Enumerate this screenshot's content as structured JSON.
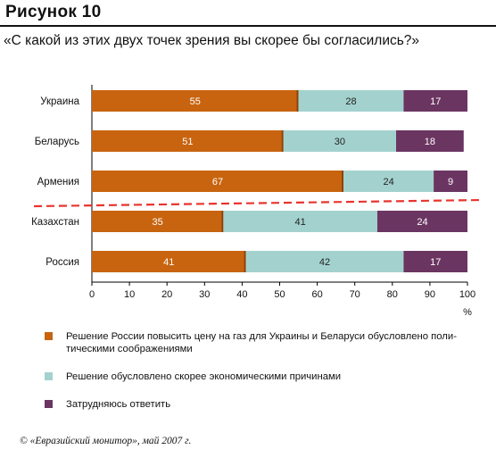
{
  "figure_label": "Рисунок 10",
  "question": "«С какой из этих двух точек зрения вы скорее бы согласились?»",
  "source_note": "© «Евразийский монитор», май 2007 г.",
  "colors": {
    "series_1": "#c8640f",
    "series_2": "#a3d2ce",
    "series_3": "#6b3561",
    "divider": "#e8342d"
  },
  "chart_data": {
    "type": "bar",
    "orientation": "horizontal",
    "stacked": true,
    "categories": [
      "Украина",
      "Беларусь",
      "Армения",
      "Казахстан",
      "Россия"
    ],
    "series": [
      {
        "name": "Решение России повысить цену на газ для Украины и Беларуси обусловлено политическими соображениями",
        "values": [
          55,
          51,
          67,
          35,
          41
        ]
      },
      {
        "name": "Решение обусловлено скорее экономическими причинами",
        "values": [
          28,
          30,
          24,
          41,
          42
        ]
      },
      {
        "name": "Затрудняюсь ответить",
        "values": [
          17,
          18,
          9,
          24,
          17
        ]
      }
    ],
    "xlim": [
      0,
      100
    ],
    "xticks": [
      0,
      10,
      20,
      30,
      40,
      50,
      60,
      70,
      80,
      90,
      100
    ],
    "xunit": "%",
    "divider_after_category": "Армения",
    "legend_position": "bottom"
  },
  "legend": [
    {
      "label": "Решение России повысить цену на газ для Украины и Беларуси обусловлено поли-\nтическими соображениями"
    },
    {
      "label": "Решение обусловлено скорее экономическими причинами"
    },
    {
      "label": "Затрудняюсь ответить"
    }
  ]
}
